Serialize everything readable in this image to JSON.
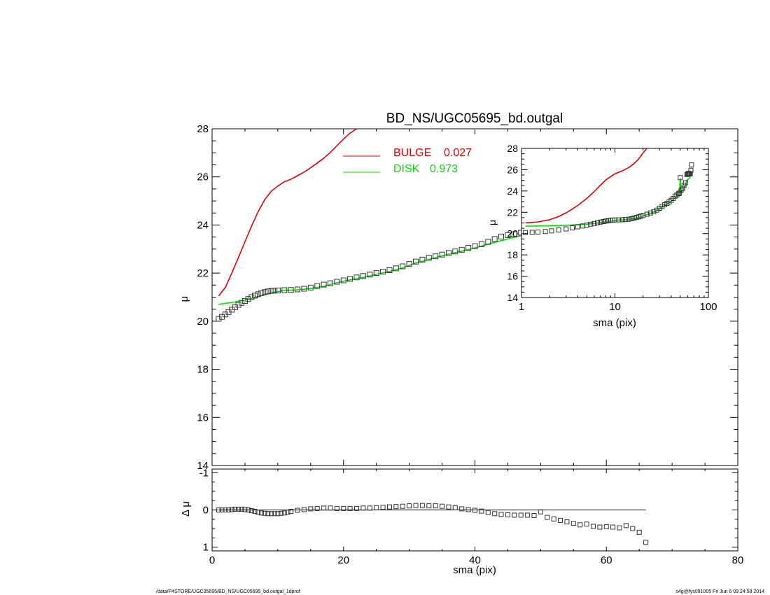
{
  "chart_data": [
    {
      "type": "scatter",
      "title": "BD_NS/UGC05695_bd.outgal",
      "xlabel": "",
      "ylabel": "μ",
      "xlim": [
        0,
        80
      ],
      "ylim": [
        28,
        14
      ],
      "xticks": [
        0,
        20,
        40,
        60,
        80
      ],
      "yticks": [
        14,
        16,
        18,
        20,
        22,
        24,
        26,
        28
      ],
      "yticklabels": [
        "14",
        "16",
        "18",
        "20",
        "22",
        "24",
        "26",
        "28"
      ],
      "legend_position": "top-center",
      "legend": [
        {
          "label": "BULGE",
          "value": "0.027",
          "color": "#dd0000"
        },
        {
          "label": "DISK",
          "value": "0.973",
          "color": "#00dd00"
        }
      ],
      "series": [
        {
          "name": "BULGE",
          "kind": "line",
          "color": "#dd0000",
          "x": [
            1,
            2,
            3,
            4,
            5,
            6,
            7,
            8,
            9,
            10,
            11,
            12,
            13,
            14,
            15,
            16,
            17,
            18,
            19,
            20,
            21,
            22
          ],
          "y": [
            21.05,
            21.4,
            22.0,
            22.65,
            23.3,
            23.95,
            24.55,
            25.05,
            25.4,
            25.62,
            25.8,
            25.9,
            26.05,
            26.2,
            26.38,
            26.58,
            26.78,
            27.02,
            27.3,
            27.58,
            27.82,
            28.0
          ]
        },
        {
          "name": "DISK",
          "kind": "line",
          "color": "#00dd00",
          "x": [
            1,
            3,
            5,
            7,
            9,
            11,
            13,
            15,
            17,
            19,
            21,
            23,
            25,
            27,
            29,
            31,
            33,
            35,
            37,
            39,
            41,
            43,
            45,
            47,
            49,
            50,
            51,
            53,
            55,
            57,
            58,
            59,
            61,
            63,
            65,
            66
          ],
          "y": [
            20.7,
            20.78,
            20.88,
            21.02,
            21.18,
            21.28,
            21.3,
            21.36,
            21.45,
            21.6,
            21.72,
            21.82,
            21.95,
            22.07,
            22.22,
            22.42,
            22.57,
            22.72,
            22.85,
            22.98,
            23.12,
            23.28,
            23.42,
            23.55,
            23.7,
            25.2,
            23.9,
            24.05,
            24.18,
            24.3,
            24.5,
            25.05,
            25.15,
            25.2,
            25.3,
            25.62
          ]
        },
        {
          "name": "",
          "kind": "points",
          "color": "#000000",
          "x": [
            1,
            1.5,
            2,
            2.5,
            3,
            3.5,
            4,
            4.5,
            5,
            5.5,
            6,
            6.5,
            7,
            7.5,
            8,
            8.5,
            9,
            9.5,
            10,
            11,
            12,
            13,
            14,
            15,
            16,
            17,
            18,
            19,
            20,
            21,
            22,
            23,
            24,
            25,
            26,
            27,
            28,
            29,
            30,
            31,
            32,
            33,
            34,
            35,
            36,
            37,
            38,
            39,
            40,
            41,
            42,
            43,
            44,
            45,
            46,
            47,
            48,
            49,
            50,
            51,
            52,
            53,
            54,
            55,
            56,
            57,
            58,
            59,
            60,
            61,
            62,
            63,
            64,
            65,
            66
          ],
          "y": [
            20.1,
            20.18,
            20.28,
            20.38,
            20.48,
            20.58,
            20.68,
            20.76,
            20.84,
            20.92,
            21.0,
            21.06,
            21.12,
            21.17,
            21.21,
            21.24,
            21.26,
            21.27,
            21.28,
            21.29,
            21.3,
            21.32,
            21.35,
            21.4,
            21.46,
            21.52,
            21.58,
            21.64,
            21.7,
            21.76,
            21.82,
            21.88,
            21.94,
            22.0,
            22.06,
            22.12,
            22.2,
            22.28,
            22.38,
            22.48,
            22.56,
            22.64,
            22.7,
            22.77,
            22.84,
            22.9,
            22.97,
            23.05,
            23.12,
            23.2,
            23.3,
            23.42,
            23.52,
            23.58,
            23.62,
            23.68,
            23.75,
            23.8,
            25.25,
            24.05,
            24.15,
            24.25,
            24.4,
            24.55,
            24.65,
            24.78,
            24.9,
            25.55,
            25.6,
            25.65,
            25.65,
            25.6,
            25.6,
            25.95,
            26.45
          ]
        }
      ]
    },
    {
      "type": "scatter",
      "title": "",
      "xlabel": "sma (pix)",
      "ylabel": "Δ μ",
      "xlim": [
        0,
        80
      ],
      "ylim": [
        -1.1,
        1.1
      ],
      "xticks": [
        0,
        20,
        40,
        60,
        80
      ],
      "xticklabels": [
        "0",
        "20",
        "40",
        "60",
        "80"
      ],
      "yticks": [
        -1,
        0,
        1
      ],
      "yticklabels": [
        "-1",
        "0",
        "1"
      ],
      "series": [
        {
          "name": "",
          "kind": "line",
          "color": "#000000",
          "x": [
            1,
            66
          ],
          "y": [
            0,
            0
          ]
        },
        {
          "name": "",
          "kind": "points",
          "color": "#000000",
          "x": [
            1,
            1.5,
            2,
            2.5,
            3,
            3.5,
            4,
            4.5,
            5,
            5.5,
            6,
            6.5,
            7,
            7.5,
            8,
            8.5,
            9,
            9.5,
            10,
            10.5,
            11,
            11.5,
            12,
            13,
            14,
            15,
            16,
            17,
            18,
            19,
            20,
            21,
            22,
            23,
            24,
            25,
            26,
            27,
            28,
            29,
            30,
            31,
            32,
            33,
            34,
            35,
            36,
            37,
            38,
            39,
            40,
            41,
            42,
            43,
            44,
            45,
            46,
            47,
            48,
            49,
            50,
            51,
            52,
            53,
            54,
            55,
            56,
            57,
            58,
            59,
            60,
            61,
            62,
            63,
            64,
            65,
            66
          ],
          "y": [
            0,
            0,
            0,
            0,
            -0.01,
            -0.02,
            -0.02,
            -0.02,
            -0.01,
            0,
            0.02,
            0.04,
            0.06,
            0.08,
            0.09,
            0.1,
            0.1,
            0.1,
            0.1,
            0.09,
            0.08,
            0.06,
            0.04,
            0.01,
            -0.01,
            -0.03,
            -0.04,
            -0.05,
            -0.05,
            -0.04,
            -0.04,
            -0.04,
            -0.04,
            -0.05,
            -0.05,
            -0.06,
            -0.07,
            -0.08,
            -0.09,
            -0.1,
            -0.11,
            -0.12,
            -0.12,
            -0.11,
            -0.11,
            -0.1,
            -0.08,
            -0.06,
            -0.03,
            -0.01,
            0.01,
            0.03,
            0.07,
            0.1,
            0.12,
            0.13,
            0.14,
            0.14,
            0.14,
            0.15,
            0.05,
            0.2,
            0.24,
            0.28,
            0.32,
            0.36,
            0.4,
            0.38,
            0.44,
            0.46,
            0.45,
            0.46,
            0.48,
            0.42,
            0.5,
            0.6,
            0.87
          ]
        }
      ]
    },
    {
      "type": "scatter",
      "title": "",
      "xlabel": "sma (pix)",
      "ylabel": "μ",
      "xscale": "log",
      "xlim": [
        1,
        100
      ],
      "ylim": [
        28,
        14
      ],
      "xticks": [
        1,
        10,
        100
      ],
      "xticklabels": [
        "1",
        "10",
        "100"
      ],
      "yticks": [
        14,
        16,
        18,
        20,
        22,
        24,
        26,
        28
      ],
      "yticklabels": [
        "14",
        "16",
        "18",
        "20",
        "22",
        "24",
        "26",
        "28"
      ],
      "series": [
        {
          "name": "BULGE",
          "kind": "line",
          "color": "#dd0000",
          "x": [
            1.1,
            1.5,
            2,
            2.5,
            3,
            3.5,
            4,
            5,
            6,
            7,
            8,
            10,
            12,
            14,
            16,
            18,
            20,
            22
          ],
          "y": [
            21.0,
            21.1,
            21.3,
            21.6,
            21.95,
            22.3,
            22.65,
            23.3,
            23.95,
            24.55,
            25.05,
            25.62,
            25.9,
            26.2,
            26.58,
            27.02,
            27.58,
            28.0
          ]
        },
        {
          "name": "DISK",
          "kind": "line",
          "color": "#00dd00",
          "x": [
            1.1,
            2,
            3,
            5,
            7,
            10,
            13,
            17,
            21,
            25,
            30,
            35,
            40,
            45,
            49,
            50,
            51,
            55,
            59,
            63,
            66
          ],
          "y": [
            20.7,
            20.74,
            20.78,
            20.88,
            21.02,
            21.25,
            21.3,
            21.45,
            21.72,
            21.95,
            22.3,
            22.72,
            23.05,
            23.42,
            23.7,
            25.2,
            23.9,
            24.18,
            25.05,
            25.2,
            25.62
          ]
        },
        {
          "name": "",
          "kind": "points",
          "color": "#000000",
          "x": [
            1.1,
            1.3,
            1.5,
            1.8,
            2.1,
            2.5,
            3,
            3.5,
            4,
            4.5,
            5,
            5.5,
            6,
            6.5,
            7,
            7.5,
            8,
            8.5,
            9,
            9.5,
            10,
            11,
            12,
            13,
            14,
            15,
            16,
            17,
            18,
            19,
            20,
            22,
            24,
            26,
            28,
            30,
            32,
            34,
            36,
            38,
            40,
            42,
            44,
            46,
            48,
            49,
            50,
            51,
            53,
            55,
            57,
            59,
            60,
            61,
            62,
            63,
            64,
            65,
            66
          ],
          "y": [
            20.1,
            20.12,
            20.15,
            20.2,
            20.26,
            20.34,
            20.44,
            20.54,
            20.64,
            20.72,
            20.8,
            20.88,
            20.95,
            21.02,
            21.08,
            21.13,
            21.18,
            21.22,
            21.25,
            21.27,
            21.28,
            21.29,
            21.3,
            21.32,
            21.35,
            21.4,
            21.46,
            21.52,
            21.58,
            21.64,
            21.7,
            21.82,
            21.94,
            22.06,
            22.2,
            22.38,
            22.56,
            22.7,
            22.84,
            22.97,
            23.12,
            23.3,
            23.52,
            23.62,
            23.75,
            23.8,
            25.25,
            24.05,
            24.25,
            24.55,
            24.78,
            25.55,
            25.6,
            25.65,
            25.65,
            25.6,
            25.6,
            25.95,
            26.45
          ]
        }
      ]
    }
  ],
  "footer": {
    "path": "/data/P4STORE/UGC05695/BD_NS/UGC05695_bd.outgal_1dprof",
    "stamp": "s4g@fys091005  Fri Jun  6 09:24:58 2014"
  }
}
